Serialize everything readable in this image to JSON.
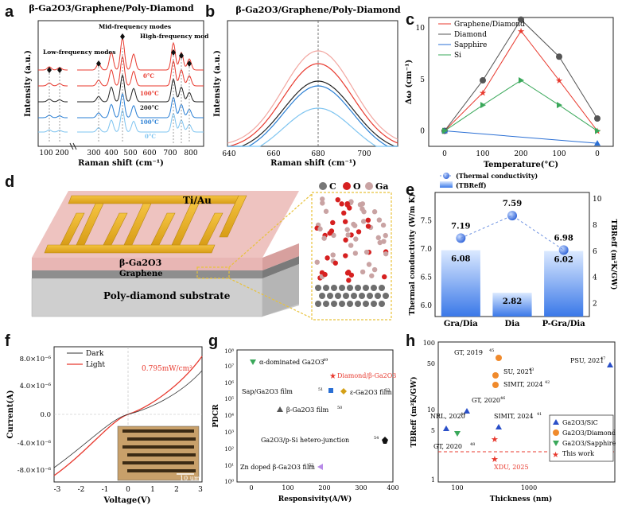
{
  "letters": {
    "a": "a",
    "b": "b",
    "c": "c",
    "d": "d",
    "e": "e",
    "f": "f",
    "g": "g",
    "h": "h"
  },
  "panel_a": {
    "title": "β-Ga2O3/Graphene/Poly-Diamond",
    "ylabel": "Intensity (a.u.)",
    "xlabel": "Raman shift (cm⁻¹)",
    "ticks": [
      "100",
      "200",
      "300",
      "400",
      "500",
      "600",
      "700",
      "800"
    ],
    "annot_low": "Low-frequency modes",
    "annot_mid": "Mid-frequency modes",
    "annot_high": "High-frequency modes",
    "temps": [
      {
        "label": "0°C",
        "color": "#e8392e"
      },
      {
        "label": "100°C",
        "color": "#e8392e"
      },
      {
        "label": "200°C",
        "color": "#222222"
      },
      {
        "label": "100°C",
        "color": "#2a7fd4"
      },
      {
        "label": "0°C",
        "color": "#7ec4f0"
      }
    ]
  },
  "panel_b": {
    "title": "β-Ga2O3/Graphene/Poly-Diamond",
    "ylabel": "Intensity (a.u.)",
    "xlabel": "Raman shift (cm⁻¹)",
    "ticks": [
      "640",
      "660",
      "680",
      "700"
    ],
    "dash_x": "680"
  },
  "panel_c": {
    "ylabel": "Δω (cm⁻¹)",
    "xlabel": "Temperature(°C)",
    "xticks": [
      "0",
      "100",
      "200",
      "100",
      "0"
    ],
    "yticks": [
      "0",
      "5",
      "10"
    ]
  },
  "panel_d": {
    "label_tiau": "Ti/Au",
    "label_ga2o3": "β-Ga2O3",
    "label_graphene": "Graphene",
    "label_substrate": "Poly-diamond substrate",
    "legend_c": "C",
    "legend_o": "O",
    "legend_ga": "Ga"
  },
  "panel_e": {
    "legend_tc": "(Thermal conductivity)",
    "legend_tbr": "(TBReff)",
    "ylabel_left": "Thermal conductivity (W/m K)",
    "ylabel_right": "TBReff (m²K/GW)",
    "yticks_left": [
      "6.0",
      "6.5",
      "7.0",
      "7.5"
    ],
    "yticks_right": [
      "2",
      "4",
      "6",
      "8",
      "10"
    ]
  },
  "panel_f": {
    "legend_dark": "Dark",
    "legend_light": "Light",
    "power": "0.795mW/cm²",
    "ylabel": "Current(A)",
    "xlabel": "Voltage(V)",
    "xticks": [
      "-3",
      "-2",
      "-1",
      "0",
      "1",
      "2",
      "3"
    ],
    "yticks": [
      "8.0×10⁻⁶",
      "4.0×10⁻⁶",
      "0.0",
      "-4.0×10⁻⁶",
      "-8.0×10⁻⁶"
    ],
    "scale": "10 um"
  },
  "panel_g": {
    "ylabel": "PDCR",
    "xlabel": "Responsivity(A/W)",
    "xticks": [
      "0",
      "100",
      "200",
      "300",
      "400"
    ],
    "yticks": [
      "10⁰",
      "10¹",
      "10²",
      "10³",
      "10⁴",
      "10⁵",
      "10⁶",
      "10⁷",
      "10⁸"
    ],
    "labels": {
      "alpha": "α-dominated Ga2O3",
      "alpha_ref": "49",
      "diamond": "Diamond/β-Ga2O3",
      "sap": "Sap/Ga2O3 film",
      "sap_ref": "51",
      "eps": "ε-Ga2O3 film",
      "eps_ref": "53",
      "beta": "β-Ga2O3 film",
      "beta_ref": "50",
      "psi": "Ga2O3/p-Si hetero-junction",
      "psi_ref": "54",
      "zn": "Zn doped β-Ga2O3 film",
      "zn_ref": "52"
    }
  },
  "panel_h": {
    "ylabel": "TBReff (m²K/GW)",
    "xlabel": "Thickness (nm)",
    "yticks": [
      "1",
      "5",
      "10",
      "50",
      "100"
    ],
    "xticks": [
      "100",
      "1000"
    ],
    "points": {
      "gt2019": "GT, 2019",
      "gt2019_ref": "45",
      "psu": "PSU, 2021",
      "psu_ref": "47",
      "su": "SU, 2021",
      "su_ref": "43",
      "simit2024a": "SIMIT, 2024",
      "simit2024a_ref": "42",
      "gt2020a": "GT, 2020",
      "gt2020a_ref": "46",
      "nrl": "NRL, 2020",
      "nrl_ref": "44",
      "simit2024b": "SIMIT, 2024",
      "simit2024b_ref": "41",
      "gt2020b": "GT, 2020",
      "gt2020b_ref": "48",
      "xdu": "XDU, 2025"
    },
    "legend": [
      "Ga2O3/SiC",
      "Ga2O3/Diamond",
      "Ga2O3/Sapphire",
      "This work"
    ]
  },
  "chart_data": [
    {
      "type": "line",
      "title": "",
      "xlabel": "Temperature(°C)",
      "ylabel": "Δω (cm⁻¹)",
      "categories": [
        "0",
        "100",
        "200",
        "100",
        "0"
      ],
      "ylim": [
        -1.5,
        11
      ],
      "series": [
        {
          "name": "Graphene/Diamond",
          "color": "#e8392e",
          "marker": "star",
          "values": [
            0,
            3.7,
            9.7,
            4.9,
            0
          ]
        },
        {
          "name": "Diamond",
          "color": "#555555",
          "marker": "circle",
          "values": [
            0,
            4.9,
            10.8,
            7.2,
            1.2
          ]
        },
        {
          "name": "Sapphire",
          "color": "#2a6fd4",
          "marker": "triangle-up",
          "values": [
            0,
            null,
            null,
            null,
            -1.2
          ]
        },
        {
          "name": "Si",
          "color": "#3aa85a",
          "marker": "triangle-right",
          "values": [
            0,
            2.5,
            4.9,
            2.5,
            0
          ]
        }
      ]
    },
    {
      "type": "bar",
      "title": "",
      "categories": [
        "Gra/Dia",
        "Dia",
        "P-Gra/Dia"
      ],
      "series": [
        {
          "name": "(TBReff)",
          "axis": "right",
          "values": [
            6.08,
            2.82,
            6.02
          ]
        },
        {
          "name": "(Thermal conductivity)",
          "axis": "left",
          "values": [
            7.19,
            7.59,
            6.98
          ]
        }
      ],
      "ylim_left": [
        5.8,
        8.0
      ],
      "ylim_right": [
        1,
        10.5
      ]
    }
  ]
}
